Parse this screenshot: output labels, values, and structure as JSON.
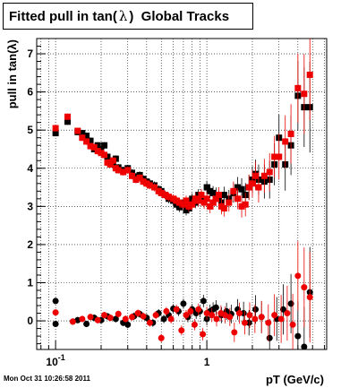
{
  "title_prefix": "Fitted pull in tan(",
  "title_symbol": "λ",
  "title_suffix": ")  Global Tracks",
  "footer": "Mon Oct 31 10:26:58 2011",
  "chart_data": {
    "type": "scatter",
    "xlabel": "pT (GeV/c)",
    "ylabel": "pull in tan(λ)",
    "xscale": "log",
    "xlim": [
      0.075,
      6.2
    ],
    "ylim": [
      -0.75,
      7.4
    ],
    "grid": true,
    "yticks": [
      0,
      1,
      2,
      3,
      4,
      5,
      6,
      7
    ],
    "xticks_major": [
      {
        "value": 0.1,
        "base": "10",
        "exp": "-1"
      },
      {
        "value": 1,
        "text": "1"
      }
    ],
    "series": [
      {
        "color": "#000000",
        "marker": "square",
        "points": [
          [
            0.1,
            4.92
          ],
          [
            0.12,
            5.22
          ],
          [
            0.14,
            4.95
          ],
          [
            0.15,
            4.92
          ],
          [
            0.16,
            4.85
          ],
          [
            0.17,
            4.72
          ],
          [
            0.18,
            4.5
          ],
          [
            0.19,
            4.6
          ],
          [
            0.2,
            4.5
          ],
          [
            0.21,
            4.6
          ],
          [
            0.22,
            4.3
          ],
          [
            0.23,
            4.2
          ],
          [
            0.24,
            4.1
          ],
          [
            0.25,
            4.25
          ],
          [
            0.26,
            4.02
          ],
          [
            0.28,
            3.95
          ],
          [
            0.3,
            4.0
          ],
          [
            0.32,
            3.88
          ],
          [
            0.34,
            3.78
          ],
          [
            0.36,
            3.82
          ],
          [
            0.38,
            3.72
          ],
          [
            0.4,
            3.65
          ],
          [
            0.42,
            3.6
          ],
          [
            0.45,
            3.55
          ],
          [
            0.48,
            3.45
          ],
          [
            0.5,
            3.4
          ],
          [
            0.53,
            3.3
          ],
          [
            0.56,
            3.2
          ],
          [
            0.6,
            3.15
          ],
          [
            0.63,
            3.05
          ],
          [
            0.66,
            2.98
          ],
          [
            0.7,
            3.1
          ],
          [
            0.73,
            2.9
          ],
          [
            0.76,
            2.95
          ],
          [
            0.8,
            3.2
          ],
          [
            0.84,
            3.1
          ],
          [
            0.88,
            3.3
          ],
          [
            0.92,
            3.25
          ],
          [
            0.96,
            3.15
          ],
          [
            1.0,
            3.5
          ],
          [
            1.05,
            3.4
          ],
          [
            1.1,
            3.35
          ],
          [
            1.15,
            3.3
          ],
          [
            1.2,
            3.2
          ],
          [
            1.25,
            3.1
          ],
          [
            1.3,
            3.3
          ],
          [
            1.4,
            3.2
          ],
          [
            1.5,
            3.35
          ],
          [
            1.6,
            3.5
          ],
          [
            1.7,
            3.45
          ],
          [
            1.8,
            3.3
          ],
          [
            1.9,
            3.5
          ],
          [
            2.0,
            3.7
          ],
          [
            2.1,
            3.85
          ],
          [
            2.2,
            3.7
          ],
          [
            2.4,
            3.65
          ],
          [
            2.6,
            3.7
          ],
          [
            2.8,
            4.1
          ],
          [
            3.0,
            4.8
          ],
          [
            3.3,
            4.1
          ],
          [
            3.6,
            4.6
          ],
          [
            4.0,
            5.9
          ],
          [
            4.4,
            5.6
          ],
          [
            4.8,
            5.6
          ]
        ]
      },
      {
        "color": "#ee0000",
        "marker": "square",
        "points": [
          [
            0.1,
            5.05
          ],
          [
            0.12,
            5.35
          ],
          [
            0.14,
            4.98
          ],
          [
            0.15,
            4.8
          ],
          [
            0.16,
            4.7
          ],
          [
            0.17,
            4.58
          ],
          [
            0.18,
            4.55
          ],
          [
            0.19,
            4.45
          ],
          [
            0.2,
            4.4
          ],
          [
            0.21,
            4.35
          ],
          [
            0.22,
            4.15
          ],
          [
            0.23,
            4.1
          ],
          [
            0.24,
            4.2
          ],
          [
            0.25,
            4.0
          ],
          [
            0.26,
            3.95
          ],
          [
            0.28,
            3.9
          ],
          [
            0.3,
            3.95
          ],
          [
            0.32,
            3.8
          ],
          [
            0.34,
            3.7
          ],
          [
            0.36,
            3.75
          ],
          [
            0.38,
            3.65
          ],
          [
            0.4,
            3.6
          ],
          [
            0.42,
            3.55
          ],
          [
            0.45,
            3.5
          ],
          [
            0.48,
            3.4
          ],
          [
            0.5,
            3.35
          ],
          [
            0.53,
            3.3
          ],
          [
            0.56,
            3.25
          ],
          [
            0.6,
            3.2
          ],
          [
            0.63,
            3.15
          ],
          [
            0.66,
            3.1
          ],
          [
            0.7,
            3.05
          ],
          [
            0.73,
            3.15
          ],
          [
            0.76,
            3.0
          ],
          [
            0.8,
            3.05
          ],
          [
            0.84,
            3.2
          ],
          [
            0.88,
            3.15
          ],
          [
            0.92,
            3.3
          ],
          [
            0.96,
            3.1
          ],
          [
            1.0,
            3.2
          ],
          [
            1.05,
            3.0
          ],
          [
            1.1,
            3.1
          ],
          [
            1.15,
            3.2
          ],
          [
            1.2,
            3.3
          ],
          [
            1.25,
            3.0
          ],
          [
            1.3,
            2.95
          ],
          [
            1.4,
            3.1
          ],
          [
            1.5,
            3.4
          ],
          [
            1.6,
            3.2
          ],
          [
            1.7,
            3.0
          ],
          [
            1.8,
            3.05
          ],
          [
            1.9,
            3.5
          ],
          [
            2.0,
            3.6
          ],
          [
            2.1,
            3.8
          ],
          [
            2.2,
            3.5
          ],
          [
            2.4,
            3.8
          ],
          [
            2.6,
            3.9
          ],
          [
            2.8,
            4.3
          ],
          [
            3.0,
            4.3
          ],
          [
            3.3,
            4.7
          ],
          [
            3.6,
            4.9
          ],
          [
            4.0,
            6.1
          ],
          [
            4.4,
            5.95
          ],
          [
            4.8,
            6.45
          ]
        ]
      },
      {
        "color": "#000000",
        "marker": "circle",
        "points": [
          [
            0.1,
            0.52
          ],
          [
            0.1,
            -0.08
          ],
          [
            0.13,
            -0.02
          ],
          [
            0.14,
            0.02
          ],
          [
            0.16,
            -0.08
          ],
          [
            0.18,
            0.08
          ],
          [
            0.2,
            0.02
          ],
          [
            0.22,
            0.12
          ],
          [
            0.25,
            0.05
          ],
          [
            0.28,
            -0.05
          ],
          [
            0.3,
            -0.1
          ],
          [
            0.33,
            0.12
          ],
          [
            0.36,
            0.18
          ],
          [
            0.4,
            0.08
          ],
          [
            0.44,
            -0.05
          ],
          [
            0.48,
            0.2
          ],
          [
            0.52,
            0.05
          ],
          [
            0.56,
            0.15
          ],
          [
            0.6,
            0.32
          ],
          [
            0.65,
            0.25
          ],
          [
            0.7,
            0.45
          ],
          [
            0.75,
            0.1
          ],
          [
            0.8,
            0.3
          ],
          [
            0.85,
            0.2
          ],
          [
            0.9,
            0.25
          ],
          [
            0.95,
            0.52
          ],
          [
            1.0,
            0.05
          ],
          [
            1.05,
            0.25
          ],
          [
            1.1,
            0.3
          ],
          [
            1.15,
            0.35
          ],
          [
            1.25,
            0.15
          ],
          [
            1.35,
            0.25
          ],
          [
            1.45,
            0.18
          ],
          [
            1.6,
            0.3
          ],
          [
            1.75,
            0.2
          ],
          [
            1.9,
            -0.05
          ],
          [
            2.1,
            0.3
          ],
          [
            2.3,
            0.1
          ],
          [
            2.6,
            -0.45
          ],
          [
            2.9,
            0.05
          ],
          [
            3.2,
            0.3
          ],
          [
            3.6,
            0.45
          ],
          [
            4.0,
            -0.4
          ],
          [
            4.4,
            -0.68
          ],
          [
            4.8,
            0.75
          ]
        ]
      },
      {
        "color": "#ee0000",
        "marker": "circle",
        "points": [
          [
            0.1,
            0.22
          ],
          [
            0.13,
            -0.02
          ],
          [
            0.15,
            0.05
          ],
          [
            0.17,
            0.1
          ],
          [
            0.19,
            0.02
          ],
          [
            0.21,
            0.15
          ],
          [
            0.23,
            0.08
          ],
          [
            0.26,
            0.18
          ],
          [
            0.29,
            0.05
          ],
          [
            0.32,
            0.1
          ],
          [
            0.35,
            0.2
          ],
          [
            0.38,
            0.12
          ],
          [
            0.42,
            -0.05
          ],
          [
            0.46,
            0.15
          ],
          [
            0.5,
            -0.45
          ],
          [
            0.54,
            0.25
          ],
          [
            0.58,
            0.05
          ],
          [
            0.63,
            0.3
          ],
          [
            0.68,
            -0.25
          ],
          [
            0.73,
            0.15
          ],
          [
            0.78,
            0.25
          ],
          [
            0.83,
            -0.1
          ],
          [
            0.88,
            0.3
          ],
          [
            0.94,
            -0.35
          ],
          [
            1.0,
            0.2
          ],
          [
            1.08,
            0.15
          ],
          [
            1.16,
            0.05
          ],
          [
            1.24,
            0.2
          ],
          [
            1.32,
            0.15
          ],
          [
            1.42,
            0.1
          ],
          [
            1.52,
            -0.3
          ],
          [
            1.64,
            0.2
          ],
          [
            1.78,
            -0.05
          ],
          [
            1.92,
            0.15
          ],
          [
            2.08,
            0.05
          ],
          [
            2.3,
            0.1
          ],
          [
            2.55,
            -0.05
          ],
          [
            2.8,
            0.15
          ],
          [
            3.1,
            0.05
          ],
          [
            3.4,
            0.2
          ],
          [
            3.7,
            -0.1
          ],
          [
            4.0,
            1.18
          ],
          [
            4.4,
            0.88
          ],
          [
            4.8,
            0.62
          ]
        ]
      }
    ]
  }
}
